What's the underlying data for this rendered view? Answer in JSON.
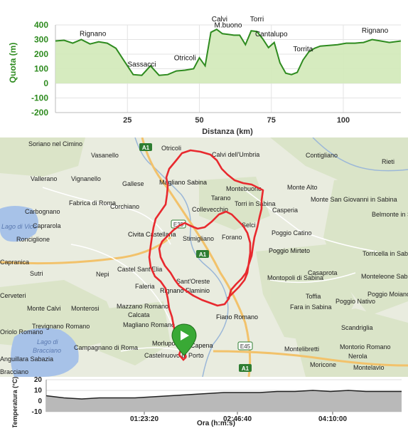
{
  "elevation": {
    "y_label": "Quota (m)",
    "x_label": "Distanza (km)",
    "y_ticks": [
      "400",
      "300",
      "200",
      "100",
      "0",
      "-100",
      "-200"
    ],
    "x_ticks": [
      "25",
      "50",
      "75",
      "100"
    ],
    "places": [
      "Rignano",
      "Sassacci",
      "Otricoli",
      "Calvi",
      "M.buono",
      "Torri",
      "Cantalupo",
      "Torrita",
      "Rignano"
    ],
    "colors": {
      "line": "#2e8b1f",
      "fill": "#d2e9b8",
      "axis_label": "#2e8b1f"
    }
  },
  "chart_data": [
    {
      "type": "area",
      "title": "",
      "xlabel": "Distanza (km)",
      "ylabel": "Quota (m)",
      "xlim": [
        0,
        120
      ],
      "ylim": [
        -200,
        400
      ],
      "x": [
        0,
        3,
        6,
        9,
        12,
        15,
        18,
        21,
        24,
        27,
        30,
        33,
        36,
        39,
        42,
        45,
        48,
        50,
        52,
        54,
        56,
        58,
        60,
        62,
        64,
        66,
        68,
        70,
        72,
        74,
        76,
        78,
        80,
        82,
        84,
        86,
        88,
        90,
        92,
        95,
        98,
        101,
        104,
        107,
        110,
        113,
        116,
        120
      ],
      "series": [
        {
          "values": [
            290,
            295,
            275,
            300,
            270,
            285,
            275,
            240,
            150,
            60,
            55,
            120,
            55,
            60,
            85,
            90,
            100,
            175,
            120,
            350,
            370,
            340,
            335,
            330,
            330,
            265,
            360,
            355,
            305,
            245,
            280,
            140,
            70,
            60,
            75,
            160,
            215,
            240,
            255,
            260,
            265,
            275,
            275,
            280,
            300,
            290,
            280,
            290
          ]
        }
      ]
    },
    {
      "type": "area",
      "title": "",
      "xlabel": "Ora (h:m:s)",
      "ylabel": "Temperatura (°C)",
      "ylim": [
        -10,
        20
      ],
      "x_ticks": [
        "01:23:20",
        "02:46:40",
        "04:10:00"
      ],
      "series": [
        {
          "values": [
            5,
            3,
            2,
            3,
            3,
            3,
            4,
            5,
            6,
            7,
            8,
            8,
            8,
            9,
            9,
            10,
            9,
            10,
            9,
            9,
            9
          ]
        }
      ]
    }
  ],
  "map": {
    "places": [
      "Soriano nel Cimino",
      "Vasanello",
      "Otricoli",
      "Calvi dell'Umbria",
      "Contigliano",
      "Rieti",
      "Vallerano",
      "Vignanello",
      "Gallese",
      "Magliano Sabina",
      "Montebuono",
      "Monte Alto",
      "Fabrica di Roma",
      "Corchiano",
      "Tarano",
      "Collevecchio",
      "Torri in Sabina",
      "Casperia",
      "Monte San Giovanni in Sabina",
      "Belmonte in Sabina",
      "Carbognano",
      "Caprarola",
      "Ronciglione",
      "Civita Castellana",
      "Stimigliano",
      "Forano",
      "Selci",
      "Poggio Catino",
      "Poggio Mirteto",
      "Capranica",
      "Nepi",
      "Castel Sant'Elia",
      "Sutri",
      "Faleria",
      "Sant'Oreste",
      "Montopoli di Sabina",
      "Casaprota",
      "Torricella in Sabina",
      "Monteleone Sabino",
      "Rignano Flaminio",
      "Mazzano Romano",
      "Calcata",
      "Monte Calvi",
      "Monterosi",
      "Toffia",
      "Fara in Sabina",
      "Poggio Nativo",
      "Poggio Moiano",
      "Fiano Romano",
      "Trevignano Romano",
      "Campagnano di Roma",
      "Magliano Romano",
      "Morlupo",
      "Capena",
      "Scandriglia",
      "Castelnuovo di Porto",
      "Montelibretti",
      "Montorio Romano",
      "Nerola",
      "Moricone",
      "Montelavio",
      "Oriolo Romano",
      "Anguillara Sabazia",
      "Bracciano",
      "Cerveteri",
      "Lago di Vico",
      "Lago di Bracciano"
    ],
    "roads": [
      "A1",
      "A1",
      "A1",
      "E35",
      "E45"
    ],
    "colors": {
      "route": "#e8292e",
      "marker": "#39a935",
      "water": "#a7c2e8",
      "highway": "#f2c26b",
      "terrain": "#d8e3c4"
    }
  },
  "temperature": {
    "y_label": "Temperatura (°C)",
    "x_label": "Ora (h:m:s)",
    "y_ticks": [
      "20",
      "10",
      "0",
      "-10"
    ],
    "x_ticks": [
      "01:23:20",
      "02:46:40",
      "04:10:00"
    ]
  }
}
